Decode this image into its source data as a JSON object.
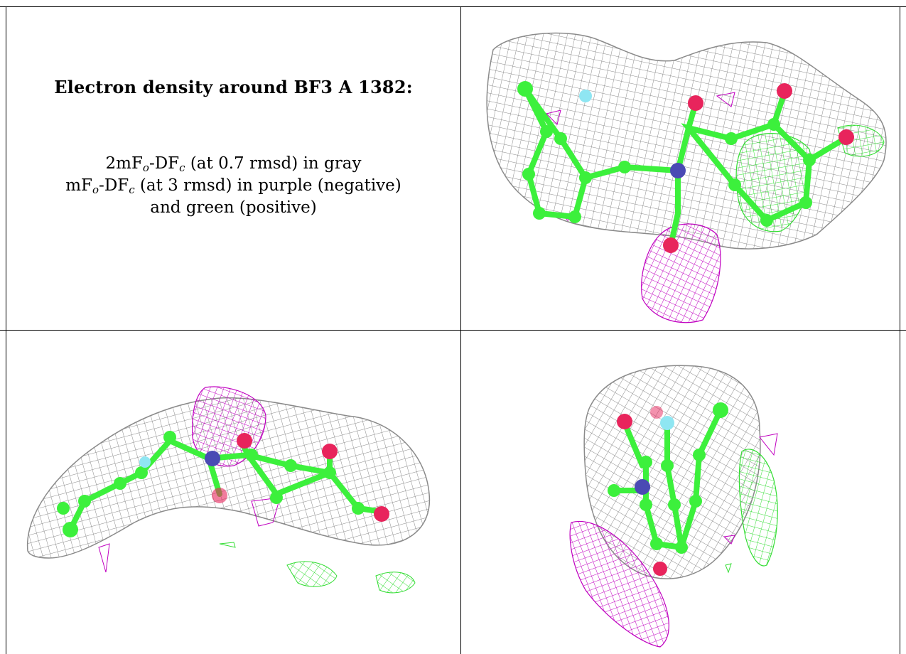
{
  "caption": {
    "title": "Electron density around BF3 A 1382:",
    "line1": {
      "a": "2mF",
      "o": "o",
      "b": "-DF",
      "c": "c",
      "rest": " (at 0.7 rmsd) in gray"
    },
    "line2": {
      "a": "mF",
      "o": "o",
      "b": "-DF",
      "c": "c",
      "rest": " (at 3 rmsd) in purple (negative)"
    },
    "line3": "and green (positive)"
  },
  "colors": {
    "density_2fofc": "#8a8a8a",
    "difference_negative": "#c000c0",
    "difference_positive": "#33dd33",
    "carbon": "#3cf03c",
    "oxygen": "#e8245c",
    "nitrogen": "#4a4ab4",
    "fluorine": "#8fe6f2"
  }
}
